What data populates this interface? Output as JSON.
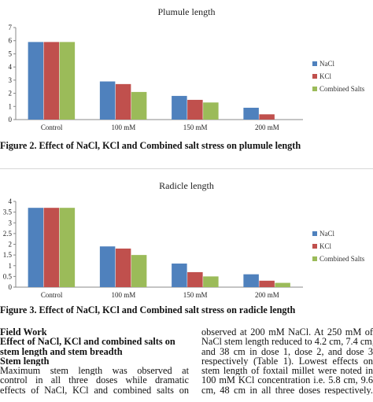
{
  "chart_data": [
    {
      "type": "bar",
      "title": "Plumule length",
      "categories": [
        "Control",
        "100 mM",
        "150 mM",
        "200 mM"
      ],
      "series": [
        {
          "name": "NaCl",
          "color": "#4f81bd",
          "values": [
            5.9,
            2.9,
            1.8,
            0.9
          ]
        },
        {
          "name": "KCl",
          "color": "#c0504d",
          "values": [
            5.9,
            2.7,
            1.5,
            0.4
          ]
        },
        {
          "name": "Combined Salts",
          "color": "#9bbb59",
          "values": [
            5.9,
            2.1,
            1.3,
            0.0
          ]
        }
      ],
      "ylim": [
        0,
        7
      ],
      "yticks": [
        "0",
        "1",
        "2",
        "3",
        "4",
        "5",
        "6",
        "7"
      ],
      "legend": "right",
      "grid": false
    },
    {
      "type": "bar",
      "title": "Radicle length",
      "categories": [
        "Control",
        "100 mM",
        "150 mM",
        "200 mM"
      ],
      "series": [
        {
          "name": "NaCl",
          "color": "#4f81bd",
          "values": [
            3.7,
            1.9,
            1.1,
            0.6
          ]
        },
        {
          "name": "KCl",
          "color": "#c0504d",
          "values": [
            3.7,
            1.8,
            0.7,
            0.3
          ]
        },
        {
          "name": "Combined Salts",
          "color": "#9bbb59",
          "values": [
            3.7,
            1.5,
            0.5,
            0.2
          ]
        }
      ],
      "ylim": [
        0,
        4
      ],
      "yticks": [
        "0",
        "0.5",
        "1",
        "1.5",
        "2",
        "2.5",
        "3",
        "3.5",
        "4"
      ],
      "legend": "right",
      "grid": false
    }
  ],
  "captions": {
    "fig2": "Figure 2. Effect of NaCl, KCl and Combined salt stress on plumule length",
    "fig3": "Figure 3. Effect of NaCl, KCl and Combined salt stress on radicle length"
  },
  "text": {
    "left": {
      "heading1": "Field Work",
      "heading2_line1": "Effect of NaCl, KCl and combined salts on",
      "heading2_line2": "stem length and stem breadth",
      "heading3": "Stem length",
      "body_line1": "Maximum stem length was observed at",
      "body_line2": "control in all three doses while dramatic",
      "body_line3": "effects of NaCl, KCl and combined salts on"
    },
    "right": {
      "line1": "observed at 200 mM NaCl. At 250 mM of",
      "line2": "NaCl stem length reduced to 4.2 cm, 7.4 cm,",
      "line3": "and 38 cm in dose 1, dose 2, and dose 3",
      "line4": "respectively (Table 1). Lowest effects on",
      "line5": "stem length of foxtail millet were noted in",
      "line6": "100 mM KCl concentration i.e. 5.8 cm, 9.6",
      "line7": "cm, 48 cm in all three doses respectively."
    }
  }
}
